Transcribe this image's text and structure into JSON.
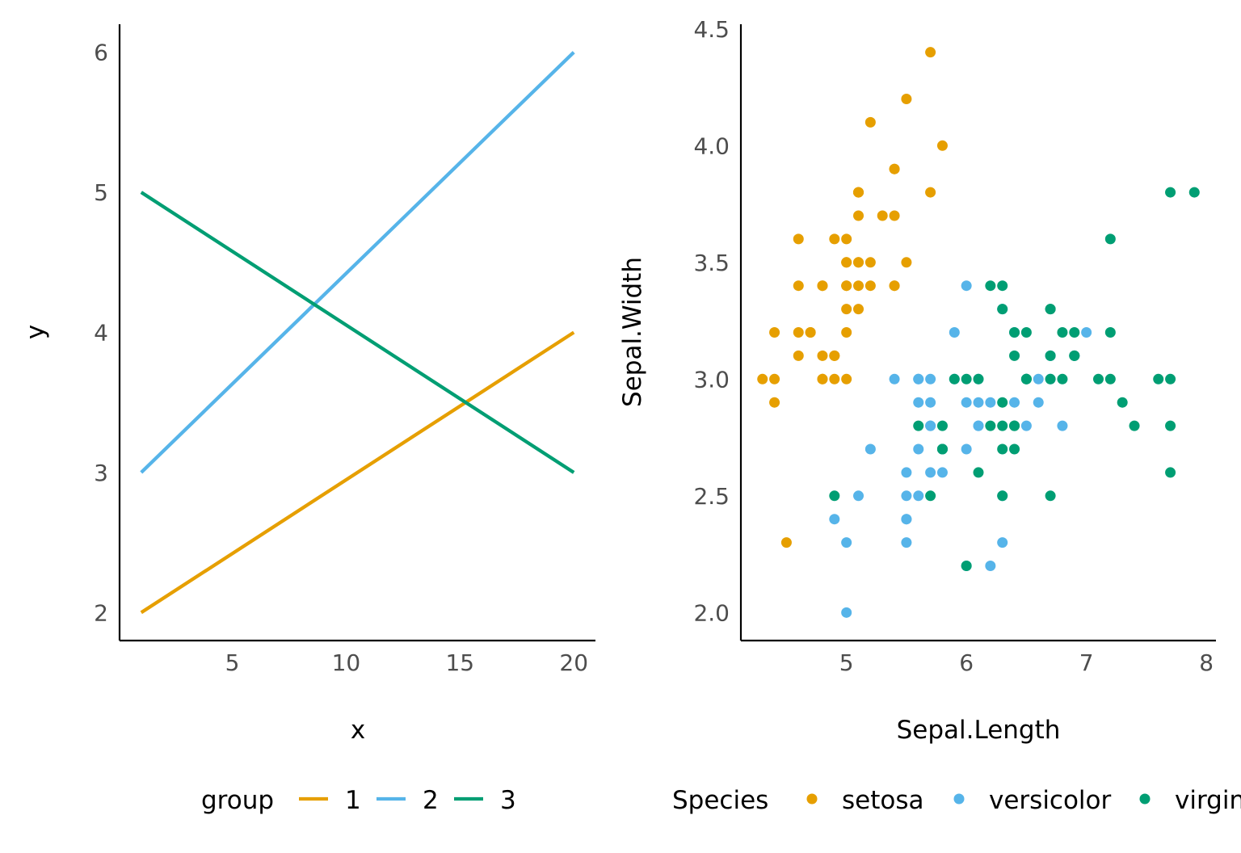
{
  "chart_data": [
    {
      "type": "line",
      "xlabel": "x",
      "ylabel": "y",
      "xlim": [
        0.05,
        20.95
      ],
      "ylim": [
        1.8,
        6.2
      ],
      "xticks": [
        5,
        10,
        15,
        20
      ],
      "yticks": [
        2,
        3,
        4,
        5,
        6
      ],
      "grid": false,
      "legend": {
        "title": "group",
        "placement": "bottom"
      },
      "series": [
        {
          "name": "1",
          "color": "#E69F00",
          "x": [
            1,
            20
          ],
          "y": [
            2,
            4
          ]
        },
        {
          "name": "2",
          "color": "#56B4E9",
          "x": [
            1,
            20
          ],
          "y": [
            3,
            6
          ]
        },
        {
          "name": "3",
          "color": "#009E73",
          "x": [
            1,
            20
          ],
          "y": [
            5,
            3
          ]
        }
      ]
    },
    {
      "type": "scatter",
      "xlabel": "Sepal.Length",
      "ylabel": "Sepal.Width",
      "xlim": [
        4.12,
        8.08
      ],
      "ylim": [
        1.88,
        4.52
      ],
      "xticks": [
        5,
        6,
        7,
        8
      ],
      "yticks": [
        "2.0",
        "2.5",
        "3.0",
        "3.5",
        "4.0",
        "4.5"
      ],
      "grid": false,
      "legend": {
        "title": "Species",
        "placement": "bottom"
      },
      "series": [
        {
          "name": "setosa",
          "color": "#E69F00",
          "points": [
            [
              5.1,
              3.5
            ],
            [
              4.9,
              3.0
            ],
            [
              4.7,
              3.2
            ],
            [
              4.6,
              3.1
            ],
            [
              5.0,
              3.6
            ],
            [
              5.4,
              3.9
            ],
            [
              4.6,
              3.4
            ],
            [
              5.0,
              3.4
            ],
            [
              4.4,
              2.9
            ],
            [
              4.9,
              3.1
            ],
            [
              5.4,
              3.7
            ],
            [
              4.8,
              3.4
            ],
            [
              4.8,
              3.0
            ],
            [
              4.3,
              3.0
            ],
            [
              5.8,
              4.0
            ],
            [
              5.7,
              4.4
            ],
            [
              5.4,
              3.9
            ],
            [
              5.1,
              3.5
            ],
            [
              5.7,
              3.8
            ],
            [
              5.1,
              3.8
            ],
            [
              5.4,
              3.4
            ],
            [
              5.1,
              3.7
            ],
            [
              4.6,
              3.6
            ],
            [
              5.1,
              3.3
            ],
            [
              4.8,
              3.4
            ],
            [
              5.0,
              3.0
            ],
            [
              5.0,
              3.4
            ],
            [
              5.2,
              3.5
            ],
            [
              5.2,
              3.4
            ],
            [
              4.7,
              3.2
            ],
            [
              4.8,
              3.1
            ],
            [
              5.4,
              3.4
            ],
            [
              5.2,
              4.1
            ],
            [
              5.5,
              4.2
            ],
            [
              4.9,
              3.1
            ],
            [
              5.0,
              3.2
            ],
            [
              5.5,
              3.5
            ],
            [
              4.9,
              3.6
            ],
            [
              4.4,
              3.0
            ],
            [
              5.1,
              3.4
            ],
            [
              5.0,
              3.5
            ],
            [
              4.5,
              2.3
            ],
            [
              4.4,
              3.2
            ],
            [
              5.0,
              3.5
            ],
            [
              5.1,
              3.8
            ],
            [
              4.8,
              3.0
            ],
            [
              5.1,
              3.8
            ],
            [
              4.6,
              3.2
            ],
            [
              5.3,
              3.7
            ],
            [
              5.0,
              3.3
            ]
          ]
        },
        {
          "name": "versicolor",
          "color": "#56B4E9",
          "points": [
            [
              7.0,
              3.2
            ],
            [
              6.4,
              3.2
            ],
            [
              6.9,
              3.1
            ],
            [
              5.5,
              2.3
            ],
            [
              6.5,
              2.8
            ],
            [
              5.7,
              2.8
            ],
            [
              6.3,
              3.3
            ],
            [
              4.9,
              2.4
            ],
            [
              6.6,
              2.9
            ],
            [
              5.2,
              2.7
            ],
            [
              5.0,
              2.0
            ],
            [
              5.9,
              3.0
            ],
            [
              6.0,
              2.2
            ],
            [
              6.1,
              2.9
            ],
            [
              5.6,
              2.9
            ],
            [
              6.7,
              3.1
            ],
            [
              5.6,
              3.0
            ],
            [
              5.8,
              2.7
            ],
            [
              6.2,
              2.2
            ],
            [
              5.6,
              2.5
            ],
            [
              5.9,
              3.2
            ],
            [
              6.1,
              2.8
            ],
            [
              6.3,
              2.5
            ],
            [
              6.1,
              2.8
            ],
            [
              6.4,
              2.9
            ],
            [
              6.6,
              3.0
            ],
            [
              6.8,
              2.8
            ],
            [
              6.7,
              3.0
            ],
            [
              6.0,
              2.9
            ],
            [
              5.7,
              2.6
            ],
            [
              5.5,
              2.4
            ],
            [
              5.5,
              2.4
            ],
            [
              5.8,
              2.7
            ],
            [
              6.0,
              2.7
            ],
            [
              5.4,
              3.0
            ],
            [
              6.0,
              3.4
            ],
            [
              6.7,
              3.1
            ],
            [
              6.3,
              2.3
            ],
            [
              5.6,
              3.0
            ],
            [
              5.5,
              2.5
            ],
            [
              5.5,
              2.6
            ],
            [
              6.1,
              3.0
            ],
            [
              5.8,
              2.6
            ],
            [
              5.0,
              2.3
            ],
            [
              5.6,
              2.7
            ],
            [
              5.7,
              3.0
            ],
            [
              5.7,
              2.9
            ],
            [
              6.2,
              2.9
            ],
            [
              5.1,
              2.5
            ],
            [
              5.7,
              2.8
            ]
          ]
        },
        {
          "name": "virginica",
          "color": "#009E73",
          "points": [
            [
              6.3,
              3.3
            ],
            [
              5.8,
              2.7
            ],
            [
              7.1,
              3.0
            ],
            [
              6.3,
              2.9
            ],
            [
              6.5,
              3.0
            ],
            [
              7.6,
              3.0
            ],
            [
              4.9,
              2.5
            ],
            [
              7.3,
              2.9
            ],
            [
              6.7,
              2.5
            ],
            [
              7.2,
              3.6
            ],
            [
              6.5,
              3.2
            ],
            [
              6.4,
              2.7
            ],
            [
              6.8,
              3.0
            ],
            [
              5.7,
              2.5
            ],
            [
              5.8,
              2.8
            ],
            [
              6.4,
              3.2
            ],
            [
              6.5,
              3.0
            ],
            [
              7.7,
              3.8
            ],
            [
              7.7,
              2.6
            ],
            [
              6.0,
              2.2
            ],
            [
              6.9,
              3.2
            ],
            [
              5.6,
              2.8
            ],
            [
              7.7,
              2.8
            ],
            [
              6.3,
              2.7
            ],
            [
              6.7,
              3.3
            ],
            [
              7.2,
              3.2
            ],
            [
              6.2,
              2.8
            ],
            [
              6.1,
              3.0
            ],
            [
              6.4,
              2.8
            ],
            [
              7.2,
              3.0
            ],
            [
              7.4,
              2.8
            ],
            [
              7.9,
              3.8
            ],
            [
              6.4,
              2.8
            ],
            [
              6.3,
              2.8
            ],
            [
              6.1,
              2.6
            ],
            [
              7.7,
              3.0
            ],
            [
              6.3,
              3.4
            ],
            [
              6.4,
              3.1
            ],
            [
              6.0,
              3.0
            ],
            [
              6.9,
              3.1
            ],
            [
              6.7,
              3.1
            ],
            [
              6.9,
              3.1
            ],
            [
              5.8,
              2.7
            ],
            [
              6.8,
              3.2
            ],
            [
              6.7,
              3.3
            ],
            [
              6.7,
              3.0
            ],
            [
              6.3,
              2.5
            ],
            [
              6.5,
              3.0
            ],
            [
              6.2,
              3.4
            ],
            [
              5.9,
              3.0
            ]
          ]
        }
      ]
    }
  ]
}
